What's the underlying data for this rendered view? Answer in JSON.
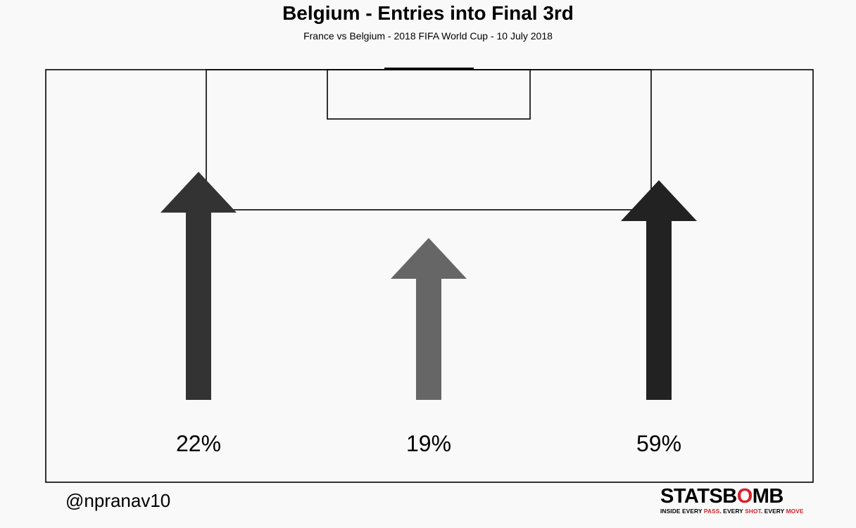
{
  "title": "Belgium - Entries into Final 3rd",
  "subtitle": "France vs Belgium  -  2018 FIFA World Cup  -  10 July 2018",
  "credit": "@npranav10",
  "logo": {
    "main_left": "STATSB",
    "main_o": "O",
    "main_right": "MB",
    "tag_1": "INSIDE EVERY ",
    "tag_pass": "PASS",
    "tag_2": ". EVERY ",
    "tag_shot": "SHOT",
    "tag_3": ". EVERY ",
    "tag_move": "MOVE",
    "accent_color": "#d8202a"
  },
  "chart_data": {
    "type": "bar",
    "title": "Belgium - Entries into Final 3rd",
    "subtitle": "France vs Belgium  -  2018 FIFA World Cup  -  10 July 2018",
    "categories": [
      "Left",
      "Centre",
      "Right"
    ],
    "values": [
      22,
      19,
      59
    ],
    "labels": [
      "22%",
      "19%",
      "59%"
    ],
    "colors": [
      "#333333",
      "#666666",
      "#222222"
    ],
    "unit": "%",
    "encoding": "arrow length and shade scale with share of entries",
    "grid": false,
    "legend": false
  }
}
